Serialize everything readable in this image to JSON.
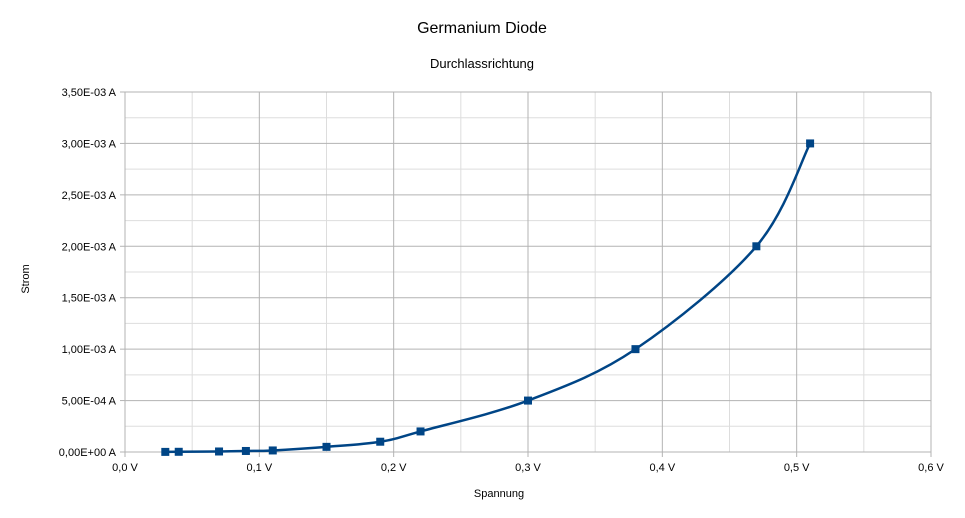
{
  "chart_data": {
    "type": "line",
    "title": "Germanium Diode",
    "subtitle": "Durchlassrichtung",
    "xlabel": "Spannung",
    "ylabel": "Strom",
    "xlim": [
      0,
      0.6
    ],
    "ylim": [
      0,
      0.0035
    ],
    "x_ticks": [
      0,
      0.1,
      0.2,
      0.3,
      0.4,
      0.5,
      0.6
    ],
    "x_tick_labels": [
      "0,0 V",
      "0,1 V",
      "0,2 V",
      "0,3 V",
      "0,4 V",
      "0,5 V",
      "0,6 V"
    ],
    "y_ticks": [
      0,
      0.0005,
      0.001,
      0.0015,
      0.002,
      0.0025,
      0.003,
      0.0035
    ],
    "y_tick_labels": [
      "0,00E+00 A",
      "5,00E-04 A",
      "1,00E-03 A",
      "1,50E-03 A",
      "2,00E-03 A",
      "2,50E-03 A",
      "3,00E-03 A",
      "3,50E-03 A"
    ],
    "x_minor_gridlines": [
      0.05,
      0.15,
      0.25,
      0.35,
      0.45,
      0.55
    ],
    "y_minor_gridlines": [
      0.00025,
      0.00075,
      0.00125,
      0.00175,
      0.00225,
      0.00275,
      0.00325
    ],
    "grid": true,
    "legend": "none",
    "series_color": "#004586",
    "marker": "square",
    "series": [
      {
        "x": [
          0.03,
          0.04,
          0.07,
          0.09,
          0.11,
          0.15,
          0.19,
          0.22,
          0.3,
          0.38,
          0.47,
          0.51
        ],
        "y": [
          1e-06,
          2e-06,
          5e-06,
          1e-05,
          1.5e-05,
          5e-05,
          0.0001,
          0.0002,
          0.0005,
          0.001,
          0.002,
          0.003
        ]
      }
    ]
  }
}
